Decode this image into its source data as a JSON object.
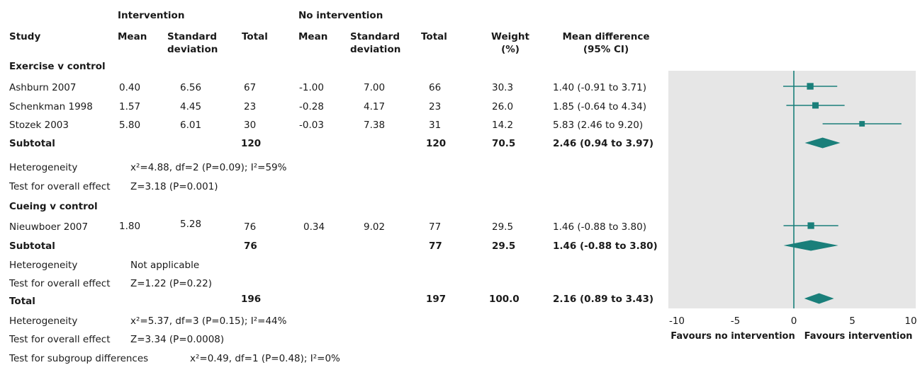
{
  "headers": {
    "intervention": "Intervention",
    "no_intervention": "No intervention",
    "study": "Study",
    "mean": "Mean",
    "sd_line1": "Standard",
    "sd_line2": "deviation",
    "total": "Total",
    "weight_line1": "Weight",
    "weight_line2": "(%)",
    "md_line1": "Mean difference",
    "md_line2": "(95% CI)"
  },
  "groups": [
    {
      "label": "Exercise v control",
      "studies": [
        {
          "name": "Ashburn 2007",
          "int_mean": "0.40",
          "int_sd": "6.56",
          "int_total": "67",
          "ctl_mean": "-1.00",
          "ctl_sd": "7.00",
          "ctl_total": "66",
          "weight": "30.3",
          "ci_text": "1.40 (-0.91 to 3.71)"
        },
        {
          "name": "Schenkman 1998",
          "int_mean": "1.57",
          "int_sd": "4.45",
          "int_total": "23",
          "ctl_mean": "-0.28",
          "ctl_sd": "4.17",
          "ctl_total": "23",
          "weight": "26.0",
          "ci_text": "1.85 (-0.64 to 4.34)"
        },
        {
          "name": "Stozek 2003",
          "int_mean": "5.80",
          "int_sd": "6.01",
          "int_total": "30",
          "ctl_mean": "-0.03",
          "ctl_sd": "7.38",
          "ctl_total": "31",
          "weight": "14.2",
          "ci_text": "5.83 (2.46 to 9.20)"
        }
      ],
      "subtotal": {
        "label": "Subtotal",
        "int_total": "120",
        "ctl_total": "120",
        "weight": "70.5",
        "ci_text": "2.46 (0.94 to 3.97)"
      },
      "heterogeneity": {
        "label": "Heterogeneity",
        "value": "x²=4.88, df=2 (P=0.09); I²=59%"
      },
      "overall": {
        "label": "Test for overall effect",
        "value": "Z=3.18 (P=0.001)"
      }
    },
    {
      "label": "Cueing v control",
      "studies": [
        {
          "name": "Nieuwboer 2007",
          "int_mean": "1.80",
          "int_sd": "5.28",
          "int_total": "76",
          "ctl_mean": "0.34",
          "ctl_sd": "9.02",
          "ctl_total": "77",
          "weight": "29.5",
          "ci_text": "1.46 (-0.88 to 3.80)"
        }
      ],
      "subtotal": {
        "label": "Subtotal",
        "int_total": "76",
        "ctl_total": "77",
        "weight": "29.5",
        "ci_text": "1.46 (-0.88 to 3.80)"
      },
      "heterogeneity": {
        "label": "Heterogeneity",
        "value": "Not applicable"
      },
      "overall": {
        "label": "Test for overall effect",
        "value": "Z=1.22 (P=0.22)"
      }
    }
  ],
  "total": {
    "label": "Total",
    "int_total": "196",
    "ctl_total": "197",
    "weight": "100.0",
    "ci_text": "2.16 (0.89 to 3.43)"
  },
  "total_heterogeneity": {
    "label": "Heterogeneity",
    "value": "x²=5.37, df=3 (P=0.15); I²=44%"
  },
  "total_overall": {
    "label": "Test for overall effect",
    "value": "Z=3.34 (P=0.0008)"
  },
  "subgroup_test": {
    "label": "Test for subgroup differences",
    "value": "x²=0.49, df=1 (P=0.48); I²=0%"
  },
  "axis": {
    "favours_left": "Favours no intervention",
    "favours_right": "Favours intervention"
  },
  "colors": {
    "marker": "#1a7f7a",
    "panel": "#e6e6e6",
    "text": "#1a1a1a"
  },
  "chart_data": {
    "type": "forest",
    "xlim": [
      -10,
      10
    ],
    "xticks": [
      -10,
      -5,
      0,
      5,
      10
    ],
    "null_line": 0,
    "studies": [
      {
        "name": "Ashburn 2007",
        "estimate": 1.4,
        "lower": -0.91,
        "upper": 3.71,
        "weight": 30.3
      },
      {
        "name": "Schenkman 1998",
        "estimate": 1.85,
        "lower": -0.64,
        "upper": 4.34,
        "weight": 26.0
      },
      {
        "name": "Stozek 2003",
        "estimate": 5.83,
        "lower": 2.46,
        "upper": 9.2,
        "weight": 14.2
      },
      {
        "name": "Nieuwboer 2007",
        "estimate": 1.46,
        "lower": -0.88,
        "upper": 3.8,
        "weight": 29.5
      }
    ],
    "pooled": [
      {
        "name": "Subtotal exercise",
        "estimate": 2.46,
        "lower": 0.94,
        "upper": 3.97
      },
      {
        "name": "Subtotal cueing",
        "estimate": 1.46,
        "lower": -0.88,
        "upper": 3.8
      },
      {
        "name": "Total",
        "estimate": 2.16,
        "lower": 0.89,
        "upper": 3.43
      }
    ]
  }
}
